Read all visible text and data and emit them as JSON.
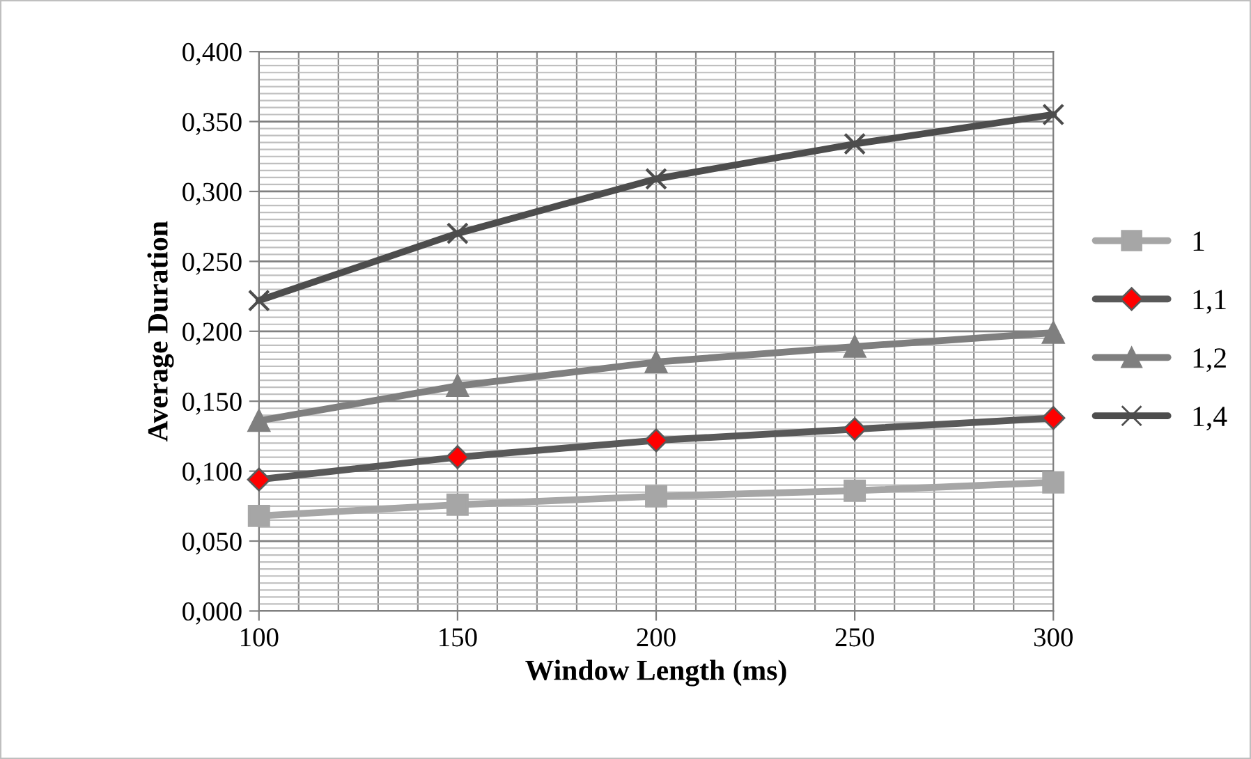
{
  "chart_data": {
    "type": "line",
    "xlabel": "Window Length (ms)",
    "ylabel": "Average Duration",
    "x": [
      100,
      150,
      200,
      250,
      300
    ],
    "series": [
      {
        "name": "1",
        "color": "#a6a6a6",
        "marker": "square",
        "values": [
          0.068,
          0.076,
          0.082,
          0.086,
          0.092
        ]
      },
      {
        "name": "1,1",
        "color": "#595959",
        "marker": "diamond",
        "colors": [
          "#ff0000",
          "#ff0000",
          "#ff0000",
          "#ff0000",
          "#ff0000"
        ],
        "values": [
          0.094,
          0.11,
          0.122,
          0.13,
          0.138
        ]
      },
      {
        "name": "1,2",
        "color": "#7f7f7f",
        "marker": "triangle",
        "values": [
          0.136,
          0.161,
          0.178,
          0.189,
          0.199
        ]
      },
      {
        "name": "1,4",
        "color": "#4d4d4d",
        "marker": "cross",
        "values": [
          0.222,
          0.27,
          0.309,
          0.334,
          0.355
        ]
      }
    ],
    "xlim": [
      100,
      300
    ],
    "xticks": [
      100,
      150,
      200,
      250,
      300
    ],
    "ylim": [
      0,
      0.4
    ],
    "yticks": [
      {
        "value": 0,
        "label": "0,000"
      },
      {
        "value": 0.05,
        "label": "0,050"
      },
      {
        "value": 0.1,
        "label": "0,100"
      },
      {
        "value": 0.15,
        "label": "0,150"
      },
      {
        "value": 0.2,
        "label": "0,200"
      },
      {
        "value": 0.25,
        "label": "0,250"
      },
      {
        "value": 0.3,
        "label": "0,300"
      },
      {
        "value": 0.35,
        "label": "0,350"
      },
      {
        "value": 0.4,
        "label": "0,400"
      }
    ],
    "grid": true,
    "legend": "right",
    "line_style": "solid"
  }
}
